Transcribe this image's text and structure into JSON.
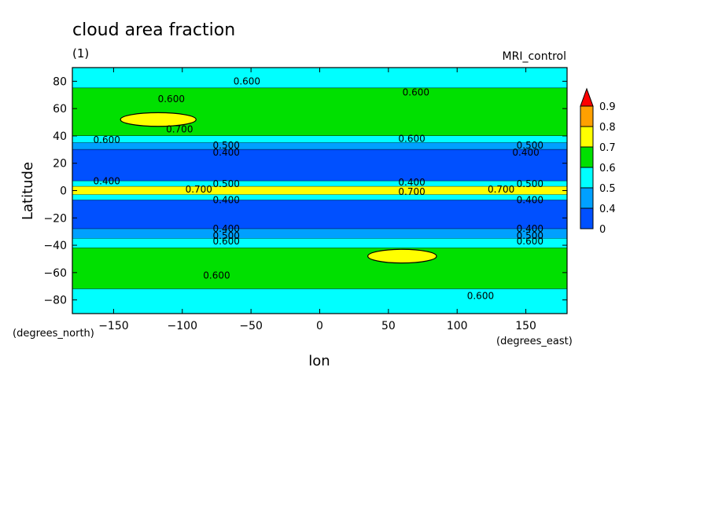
{
  "header": {
    "title": "cloud area fraction",
    "units": "(1)",
    "experiment": "MRI_control"
  },
  "chart_data": {
    "type": "heatmap",
    "title": "cloud area fraction",
    "xlabel": "lon",
    "ylabel": "Latitude",
    "x_units": "(degrees_east)",
    "y_units": "(degrees_north)",
    "xlim": [
      -180,
      180
    ],
    "ylim": [
      -90,
      90
    ],
    "x_ticks": [
      -150,
      -100,
      -50,
      0,
      50,
      100,
      150
    ],
    "y_ticks": [
      80,
      60,
      40,
      20,
      0,
      -20,
      -40,
      -60,
      -80
    ],
    "x_tick_labels": [
      "−150",
      "−100",
      "−50",
      "0",
      "50",
      "100",
      "150"
    ],
    "y_tick_labels": [
      "80",
      "60",
      "40",
      "20",
      "0",
      "−20",
      "−40",
      "−60",
      "−80"
    ],
    "colorbar": {
      "levels": [
        0,
        0.4,
        0.5,
        0.6,
        0.7,
        0.8,
        0.9
      ],
      "labels": [
        "0",
        "0.4",
        "0.5",
        "0.6",
        "0.7",
        "0.8",
        "0.9"
      ],
      "colors": [
        "#0050ff",
        "#00a0ff",
        "#00ffff",
        "#00e000",
        "#ffff00",
        "#ffa000",
        "#ff0000"
      ],
      "extend": "max"
    },
    "lat_bands": [
      {
        "lat": [
          75,
          90
        ],
        "value": 0.55
      },
      {
        "lat": [
          40,
          75
        ],
        "value": 0.65
      },
      {
        "lat": [
          35,
          40
        ],
        "value": 0.55
      },
      {
        "lat": [
          30,
          35
        ],
        "value": 0.45
      },
      {
        "lat": [
          7,
          30
        ],
        "value": 0.3
      },
      {
        "lat": [
          3,
          7
        ],
        "value": 0.55
      },
      {
        "lat": [
          -3,
          3
        ],
        "value": 0.75
      },
      {
        "lat": [
          -7,
          -3
        ],
        "value": 0.55
      },
      {
        "lat": [
          -28,
          -7
        ],
        "value": 0.3
      },
      {
        "lat": [
          -35,
          -28
        ],
        "value": 0.45
      },
      {
        "lat": [
          -42,
          -35
        ],
        "value": 0.55
      },
      {
        "lat": [
          -72,
          -42
        ],
        "value": 0.65
      },
      {
        "lat": [
          -90,
          -72
        ],
        "value": 0.55
      }
    ],
    "patches": [
      {
        "lon": [
          -145,
          -90
        ],
        "lat": [
          47,
          57
        ],
        "value": 0.75
      },
      {
        "lon": [
          35,
          85
        ],
        "lat": [
          -53,
          -43
        ],
        "value": 0.75
      }
    ],
    "contour_labels": [
      {
        "text": "0.600",
        "lon": -53,
        "lat": 80
      },
      {
        "text": "0.600",
        "lon": 70,
        "lat": 72
      },
      {
        "text": "0.600",
        "lon": -108,
        "lat": 67
      },
      {
        "text": "0.700",
        "lon": -102,
        "lat": 45
      },
      {
        "text": "0.600",
        "lon": -155,
        "lat": 37
      },
      {
        "text": "0.600",
        "lon": 67,
        "lat": 38
      },
      {
        "text": "0.500",
        "lon": -68,
        "lat": 33
      },
      {
        "text": "0.400",
        "lon": -68,
        "lat": 28
      },
      {
        "text": "0.500",
        "lon": 153,
        "lat": 33
      },
      {
        "text": "0.400",
        "lon": 150,
        "lat": 28
      },
      {
        "text": "0.400",
        "lon": -155,
        "lat": 7
      },
      {
        "text": "0.500",
        "lon": -68,
        "lat": 5
      },
      {
        "text": "0.400",
        "lon": 67,
        "lat": 6
      },
      {
        "text": "0.500",
        "lon": 153,
        "lat": 5
      },
      {
        "text": "0.700",
        "lon": -88,
        "lat": 1
      },
      {
        "text": "0.700",
        "lon": 67,
        "lat": -1
      },
      {
        "text": "0.700",
        "lon": 132,
        "lat": 1
      },
      {
        "text": "0.400",
        "lon": -68,
        "lat": -7
      },
      {
        "text": "0.400",
        "lon": 153,
        "lat": -7
      },
      {
        "text": "0.400",
        "lon": -68,
        "lat": -28
      },
      {
        "text": "0.400",
        "lon": 153,
        "lat": -28
      },
      {
        "text": "0.500",
        "lon": -68,
        "lat": -33
      },
      {
        "text": "0.500",
        "lon": 153,
        "lat": -33
      },
      {
        "text": "0.600",
        "lon": -68,
        "lat": -37
      },
      {
        "text": "0.600",
        "lon": 153,
        "lat": -37
      },
      {
        "text": "0.600",
        "lon": -75,
        "lat": -62
      },
      {
        "text": "0.600",
        "lon": 117,
        "lat": -77
      }
    ]
  }
}
